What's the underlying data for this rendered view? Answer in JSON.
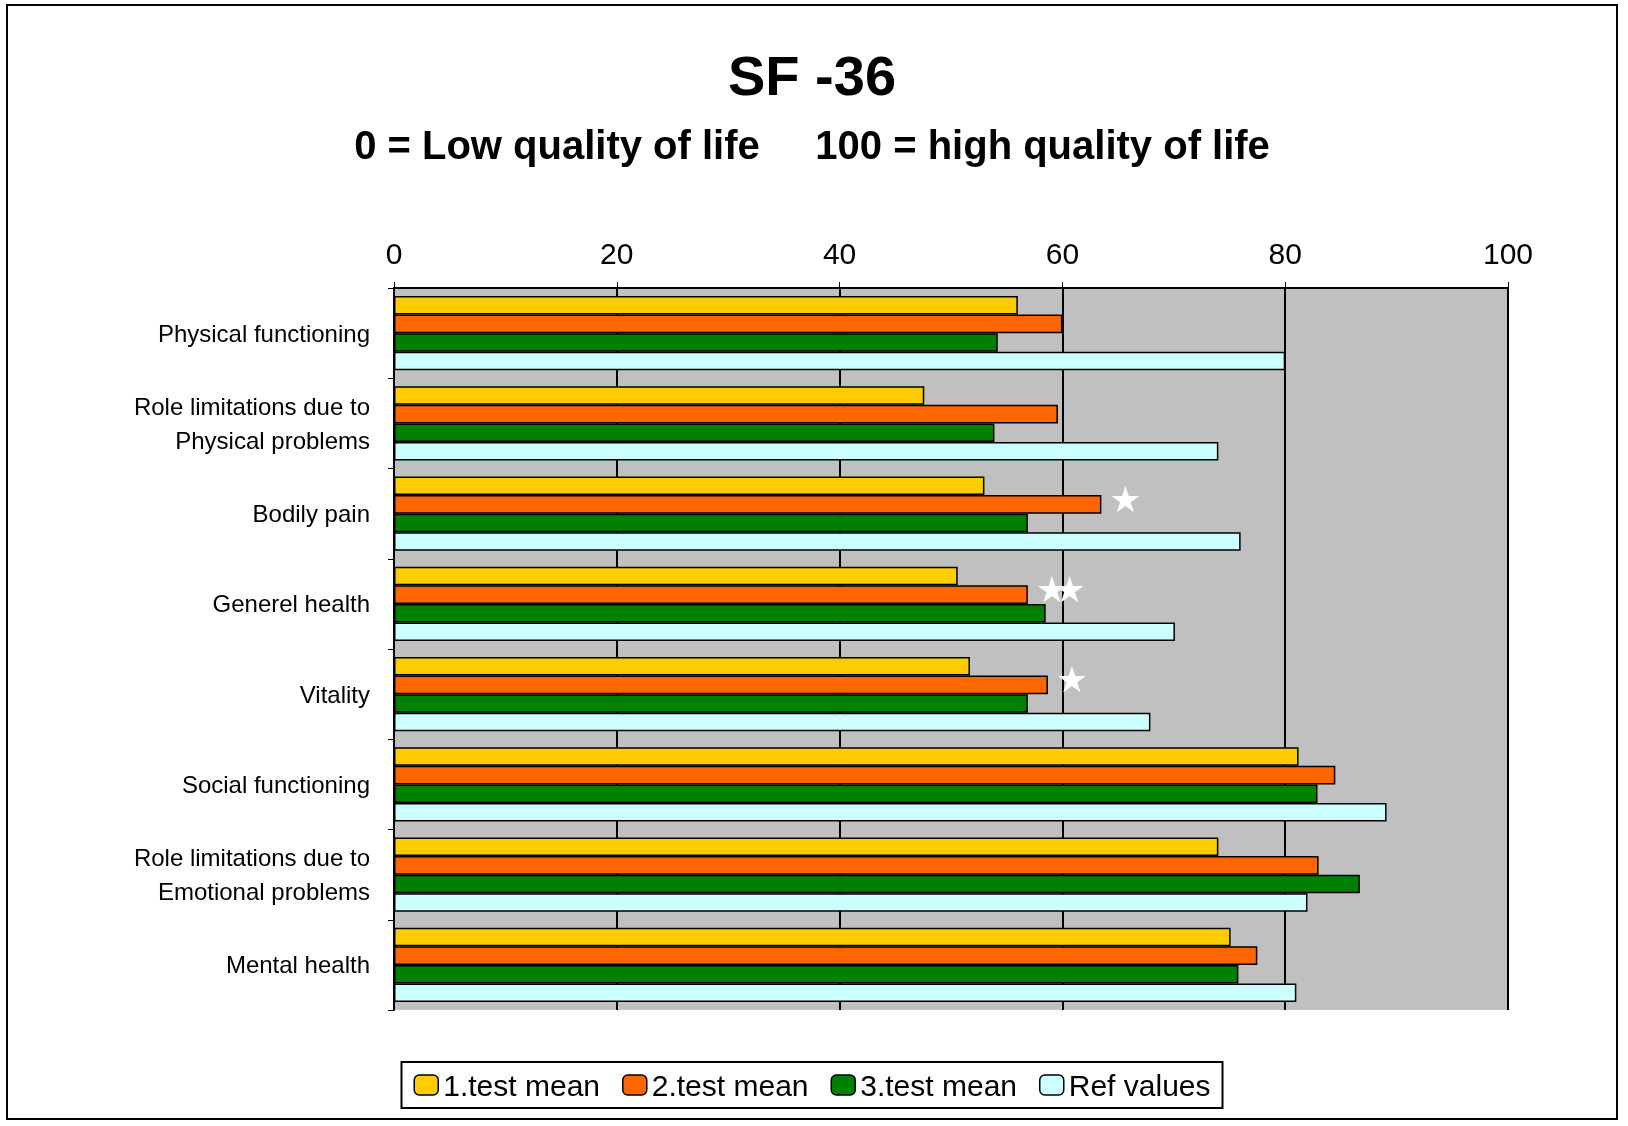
{
  "chart_data": {
    "type": "bar",
    "orientation": "horizontal",
    "title": "SF -36",
    "subtitle": "0 = Low quality of life     100 = high quality of life",
    "categories": [
      "Physical functioning",
      "Role limitations due to\nPhysical problems",
      "Bodily pain",
      "Generel health",
      "Vitality",
      "Social functioning",
      "Role limitations due to\nEmotional problems",
      "Mental health"
    ],
    "series": [
      {
        "name": "1.test mean",
        "color": "#ffcc00",
        "values": [
          56,
          47.6,
          53,
          50.6,
          51.7,
          81.2,
          74,
          75.1
        ]
      },
      {
        "name": "2.test mean",
        "color": "#ff6600",
        "values": [
          60,
          59.6,
          63.5,
          56.9,
          58.7,
          84.5,
          83,
          77.5
        ]
      },
      {
        "name": "3.test mean",
        "color": "#008000",
        "values": [
          54.2,
          53.9,
          56.9,
          58.5,
          56.9,
          82.9,
          86.7,
          75.8
        ]
      },
      {
        "name": "Ref values",
        "color": "#ccffff",
        "values": [
          80,
          74,
          76,
          70.1,
          67.9,
          89.1,
          82,
          81
        ]
      }
    ],
    "xlim": [
      0,
      100
    ],
    "xticks": [
      0,
      20,
      40,
      60,
      80,
      100
    ],
    "grid": "x",
    "legend": "bottom",
    "annotations": [
      {
        "text": "★",
        "x": 63.5,
        "y": "Bodily pain"
      },
      {
        "text": "★",
        "x": 56.9,
        "y": "Generel health"
      },
      {
        "text": "★",
        "x": 58.5,
        "y": "Generel health"
      },
      {
        "text": "★",
        "x": 58.7,
        "y": "Vitality"
      }
    ]
  }
}
